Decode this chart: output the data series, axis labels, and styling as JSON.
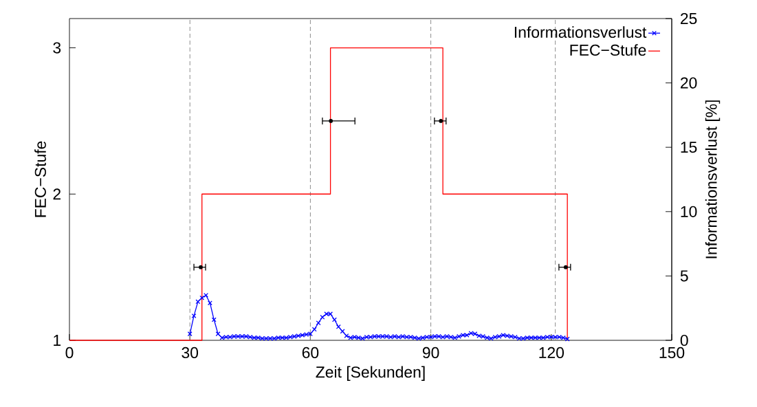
{
  "chart_data": {
    "type": "line",
    "xlabel": "Zeit [Sekunden]",
    "ylabel": "FEC−Stufe",
    "y2label": "Informationsverlust [%]",
    "xlim": [
      0,
      150
    ],
    "xticks": [
      0,
      30,
      60,
      90,
      120,
      150
    ],
    "ylim": [
      1,
      3.2
    ],
    "yticks": [
      1,
      2,
      3
    ],
    "y2lim": [
      0,
      25
    ],
    "y2ticks": [
      0,
      5,
      10,
      15,
      20,
      25
    ],
    "legend": "top right",
    "grid": false,
    "ref_lines": [
      {
        "axis": "x",
        "value": 30,
        "color": "#808080",
        "line_style": "dashed"
      },
      {
        "axis": "x",
        "value": 60,
        "color": "#808080",
        "line_style": "dashed"
      },
      {
        "axis": "x",
        "value": 90,
        "color": "#808080",
        "line_style": "dashed"
      },
      {
        "axis": "x",
        "value": 121,
        "color": "#808080",
        "line_style": "dashed"
      }
    ],
    "series": [
      {
        "name": "Informationsverlust",
        "axis": "y2",
        "color": "#0000ff",
        "marker": "cross",
        "line_style": "solid",
        "x": [
          30,
          31,
          32,
          33,
          34,
          35,
          36,
          37,
          38,
          39,
          40,
          41,
          42,
          43,
          44,
          45,
          46,
          47,
          48,
          49,
          50,
          51,
          52,
          53,
          54,
          55,
          56,
          57,
          58,
          59,
          60,
          61,
          62,
          63,
          64,
          65,
          66,
          67,
          68,
          69,
          70,
          71,
          72,
          73,
          74,
          75,
          76,
          77,
          78,
          79,
          80,
          81,
          82,
          83,
          84,
          85,
          86,
          87,
          88,
          89,
          90,
          91,
          92,
          93,
          94,
          95,
          96,
          97,
          98,
          99,
          100,
          101,
          102,
          103,
          104,
          105,
          106,
          107,
          108,
          109,
          110,
          111,
          112,
          113,
          114,
          115,
          116,
          117,
          118,
          119,
          120,
          121,
          122,
          123,
          124
        ],
        "values": [
          0.5,
          1.9,
          3.0,
          3.3,
          3.5,
          2.9,
          1.6,
          0.5,
          0.2,
          0.25,
          0.25,
          0.3,
          0.3,
          0.3,
          0.3,
          0.25,
          0.2,
          0.2,
          0.15,
          0.15,
          0.15,
          0.15,
          0.2,
          0.2,
          0.2,
          0.25,
          0.3,
          0.35,
          0.4,
          0.45,
          0.5,
          0.85,
          1.35,
          1.8,
          2.05,
          2.05,
          1.6,
          1.05,
          0.7,
          0.35,
          0.2,
          0.25,
          0.2,
          0.15,
          0.25,
          0.25,
          0.3,
          0.3,
          0.3,
          0.3,
          0.25,
          0.3,
          0.25,
          0.3,
          0.25,
          0.25,
          0.2,
          0.15,
          0.2,
          0.25,
          0.25,
          0.3,
          0.3,
          0.25,
          0.3,
          0.25,
          0.2,
          0.3,
          0.4,
          0.4,
          0.55,
          0.5,
          0.35,
          0.3,
          0.2,
          0.15,
          0.25,
          0.3,
          0.4,
          0.35,
          0.3,
          0.25,
          0.15,
          0.15,
          0.2,
          0.2,
          0.2,
          0.2,
          0.2,
          0.25,
          0.25,
          0.25,
          0.25,
          0.2,
          0.1
        ]
      },
      {
        "name": "FEC−Stufe",
        "type": "step",
        "axis": "y",
        "color": "#ff0000",
        "marker": "none",
        "line_style": "solid",
        "x": [
          0,
          33,
          65,
          93,
          124
        ],
        "values": [
          1,
          2,
          3,
          2,
          1
        ]
      },
      {
        "type": "scatter",
        "axis": "y",
        "color": "#000000",
        "marker": "circle",
        "x": [
          32.7,
          65.1,
          92.5,
          123.6
        ],
        "values": [
          1.5,
          2.5,
          2.5,
          1.5
        ],
        "xerrors": [
          [
            31.0,
            33.9
          ],
          [
            63.0,
            71.1
          ],
          [
            90.9,
            93.8
          ],
          [
            121.9,
            124.8
          ]
        ]
      }
    ]
  }
}
